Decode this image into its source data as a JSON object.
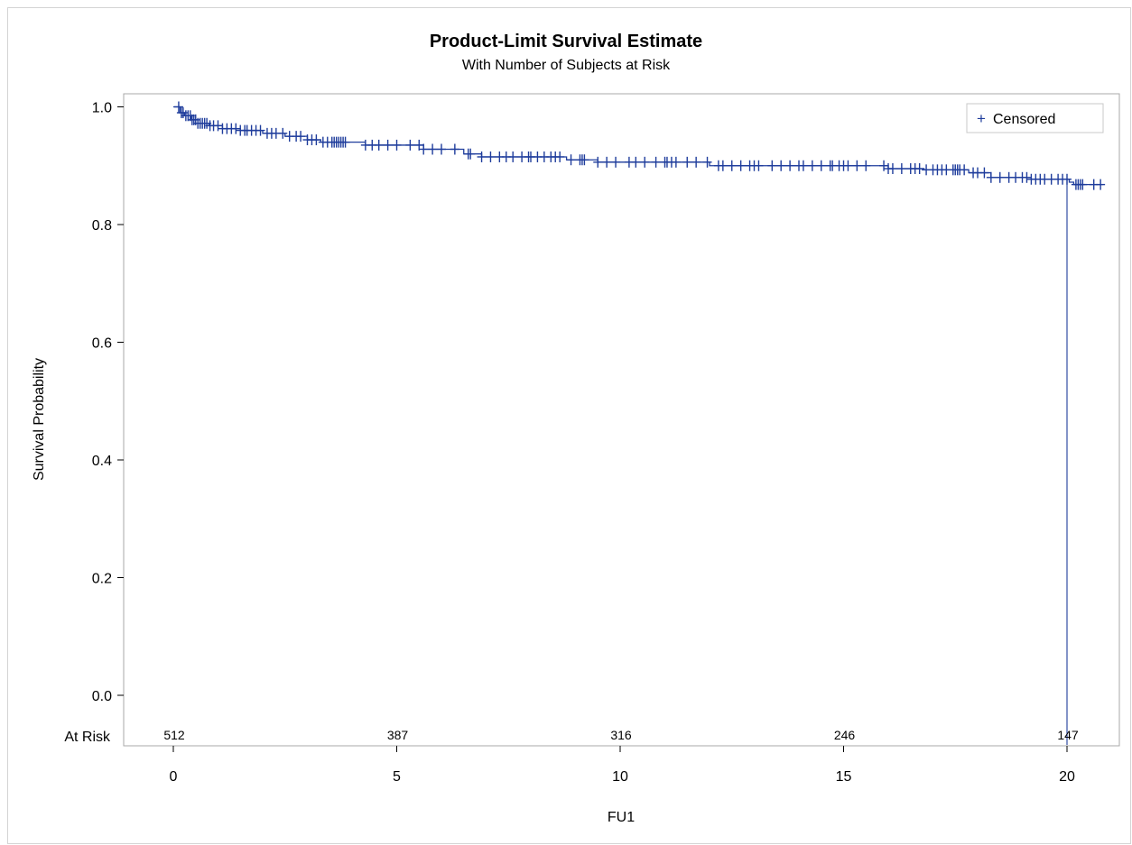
{
  "chart_data": {
    "type": "line",
    "title": "Product-Limit Survival Estimate",
    "subtitle": "With Number of Subjects at Risk",
    "xlabel": "FU1",
    "ylabel": "Survival Probability",
    "xlim": [
      -0.9,
      20.8
    ],
    "ylim": [
      -0.07,
      1.03
    ],
    "xticks": [
      0,
      5,
      10,
      15,
      20
    ],
    "yticks": [
      0.0,
      0.2,
      0.4,
      0.6,
      0.8,
      1.0
    ],
    "ytick_labels": [
      "0.0",
      "0.2",
      "0.4",
      "0.6",
      "0.8",
      "1.0"
    ],
    "legend": {
      "label": "Censored",
      "symbol": "+",
      "position": "top-right"
    },
    "line_color": "#1f3d9c",
    "series": [
      {
        "survival_steps": [
          [
            0,
            1.0
          ],
          [
            0.15,
            0.99
          ],
          [
            0.25,
            0.985
          ],
          [
            0.4,
            0.978
          ],
          [
            0.55,
            0.972
          ],
          [
            0.8,
            0.968
          ],
          [
            1.1,
            0.963
          ],
          [
            1.5,
            0.96
          ],
          [
            2.0,
            0.955
          ],
          [
            2.5,
            0.95
          ],
          [
            3.0,
            0.944
          ],
          [
            3.3,
            0.94
          ],
          [
            4.3,
            0.935
          ],
          [
            5.6,
            0.928
          ],
          [
            6.5,
            0.92
          ],
          [
            6.9,
            0.915
          ],
          [
            8.8,
            0.91
          ],
          [
            9.5,
            0.906
          ],
          [
            12.0,
            0.9
          ],
          [
            16.0,
            0.895
          ],
          [
            16.8,
            0.893
          ],
          [
            17.8,
            0.888
          ],
          [
            18.3,
            0.88
          ],
          [
            19.2,
            0.877
          ],
          [
            20.05,
            0.872
          ],
          [
            20.15,
            0.868
          ],
          [
            20.8,
            0.868
          ]
        ],
        "drop_to_zero_at": 20.0,
        "censored_times": [
          0.12,
          0.18,
          0.22,
          0.28,
          0.33,
          0.38,
          0.42,
          0.46,
          0.5,
          0.55,
          0.6,
          0.65,
          0.7,
          0.75,
          0.82,
          0.9,
          1.0,
          1.1,
          1.2,
          1.3,
          1.4,
          1.5,
          1.6,
          1.65,
          1.75,
          1.85,
          1.95,
          2.1,
          2.2,
          2.3,
          2.45,
          2.6,
          2.75,
          2.85,
          3.0,
          3.1,
          3.2,
          3.35,
          3.45,
          3.55,
          3.6,
          3.65,
          3.7,
          3.75,
          3.8,
          3.85,
          4.3,
          4.45,
          4.6,
          4.8,
          5.0,
          5.3,
          5.5,
          5.6,
          5.8,
          6.0,
          6.3,
          6.6,
          6.65,
          6.9,
          7.1,
          7.3,
          7.45,
          7.6,
          7.8,
          7.95,
          8.0,
          8.15,
          8.3,
          8.45,
          8.55,
          8.65,
          8.9,
          9.1,
          9.15,
          9.2,
          9.5,
          9.7,
          9.9,
          10.2,
          10.35,
          10.55,
          10.8,
          11.0,
          11.05,
          11.15,
          11.25,
          11.5,
          11.7,
          11.95,
          12.2,
          12.3,
          12.5,
          12.7,
          12.9,
          13.0,
          13.1,
          13.4,
          13.6,
          13.8,
          14.0,
          14.1,
          14.3,
          14.5,
          14.7,
          14.75,
          14.9,
          15.0,
          15.1,
          15.3,
          15.5,
          15.9,
          16.0,
          16.1,
          16.3,
          16.5,
          16.6,
          16.7,
          16.85,
          17.0,
          17.1,
          17.2,
          17.3,
          17.45,
          17.5,
          17.55,
          17.6,
          17.7,
          17.9,
          18.0,
          18.15,
          18.3,
          18.5,
          18.7,
          18.85,
          19.0,
          19.1,
          19.2,
          19.3,
          19.4,
          19.5,
          19.65,
          19.8,
          19.9,
          20.0,
          20.2,
          20.25,
          20.3,
          20.35,
          20.6,
          20.75
        ]
      }
    ],
    "at_risk": {
      "label": "At Risk",
      "times": [
        0,
        5,
        10,
        15,
        20
      ],
      "counts": [
        "512",
        "387",
        "316",
        "246",
        "147"
      ]
    }
  }
}
